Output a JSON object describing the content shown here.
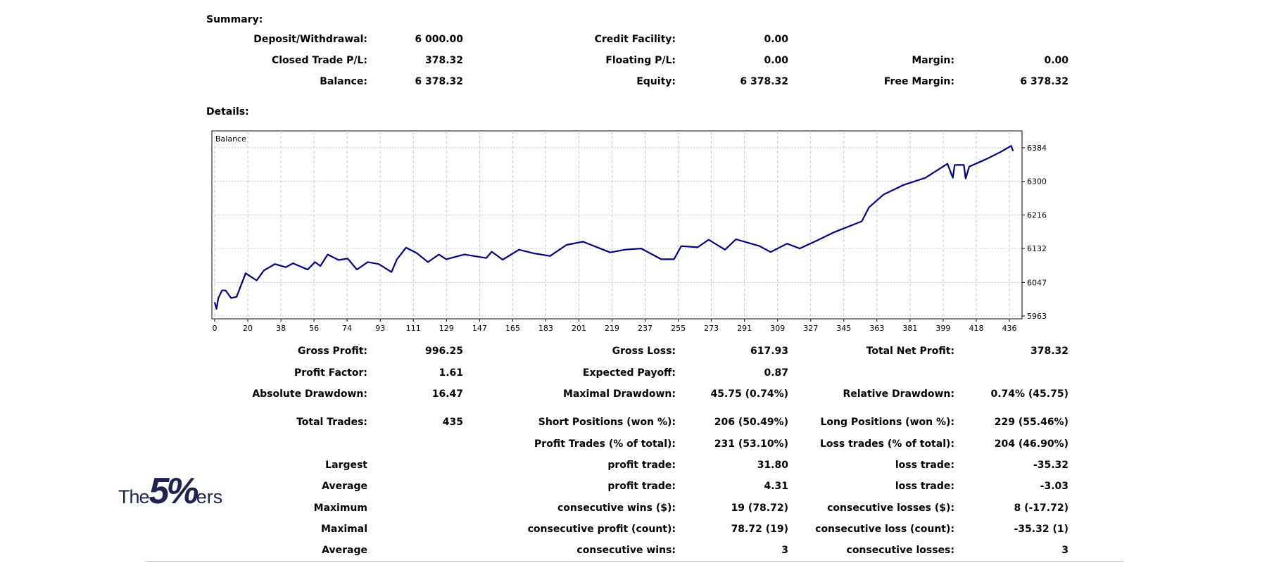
{
  "summary": {
    "title": "Summary:",
    "rows": [
      [
        {
          "label": "Deposit/Withdrawal:",
          "value": "6 000.00"
        },
        {
          "label": "Credit Facility:",
          "value": "0.00"
        },
        {
          "label": "",
          "value": ""
        }
      ],
      [
        {
          "label": "Closed Trade P/L:",
          "value": "378.32"
        },
        {
          "label": "Floating P/L:",
          "value": "0.00"
        },
        {
          "label": "Margin:",
          "value": "0.00"
        }
      ],
      [
        {
          "label": "Balance:",
          "value": "6 378.32"
        },
        {
          "label": "Equity:",
          "value": "6 378.32"
        },
        {
          "label": "Free Margin:",
          "value": "6 378.32"
        }
      ]
    ]
  },
  "details": {
    "title": "Details:",
    "rows": [
      [
        {
          "label": "Gross Profit:",
          "value": "996.25"
        },
        {
          "label": "Gross Loss:",
          "value": "617.93"
        },
        {
          "label": "Total Net Profit:",
          "value": "378.32"
        }
      ],
      [
        {
          "label": "Profit Factor:",
          "value": "1.61"
        },
        {
          "label": "Expected Payoff:",
          "value": "0.87"
        },
        {
          "label": "",
          "value": ""
        }
      ],
      [
        {
          "label": "Absolute Drawdown:",
          "value": "16.47"
        },
        {
          "label": "Maximal Drawdown:",
          "value": "45.75 (0.74%)"
        },
        {
          "label": "Relative Drawdown:",
          "value": "0.74% (45.75)"
        }
      ],
      [
        {
          "label": "Total Trades:",
          "value": "435"
        },
        {
          "label": "Short Positions (won %):",
          "value": "206 (50.49%)"
        },
        {
          "label": "Long Positions (won %):",
          "value": "229 (55.46%)"
        }
      ],
      [
        {
          "label": "",
          "value": ""
        },
        {
          "label": "Profit Trades (% of total):",
          "value": "231 (53.10%)"
        },
        {
          "label": "Loss trades (% of total):",
          "value": "204 (46.90%)"
        }
      ],
      [
        {
          "label": "Largest",
          "value": ""
        },
        {
          "label": "profit trade:",
          "value": "31.80"
        },
        {
          "label": "loss trade:",
          "value": "-35.32"
        }
      ],
      [
        {
          "label": "Average",
          "value": ""
        },
        {
          "label": "profit trade:",
          "value": "4.31"
        },
        {
          "label": "loss trade:",
          "value": "-3.03"
        }
      ],
      [
        {
          "label": "Maximum",
          "value": ""
        },
        {
          "label": "consecutive wins ($):",
          "value": "19 (78.72)"
        },
        {
          "label": "consecutive losses ($):",
          "value": "8 (-17.72)"
        }
      ],
      [
        {
          "label": "Maximal",
          "value": ""
        },
        {
          "label": "consecutive profit (count):",
          "value": "78.72 (19)"
        },
        {
          "label": "consecutive loss (count):",
          "value": "-35.32 (1)"
        }
      ],
      [
        {
          "label": "Average",
          "value": ""
        },
        {
          "label": "consecutive wins:",
          "value": "3"
        },
        {
          "label": "consecutive losses:",
          "value": "3"
        }
      ]
    ]
  },
  "logo": {
    "text_1": "The",
    "text_2": "5%",
    "text_3": "ers",
    "color": "#1e2350"
  },
  "chart_data": {
    "type": "line",
    "title": "Balance",
    "line_color": "#000080",
    "grid": true,
    "xlim": [
      0,
      438
    ],
    "ylim": [
      5963,
      6384
    ],
    "x_ticks": [
      "0",
      "20",
      "38",
      "56",
      "74",
      "93",
      "111",
      "129",
      "147",
      "165",
      "183",
      "201",
      "219",
      "237",
      "255",
      "273",
      "291",
      "309",
      "327",
      "345",
      "363",
      "381",
      "399",
      "418",
      "436"
    ],
    "y_ticks": [
      "5963",
      "6047",
      "6132",
      "6216",
      "6300",
      "6384"
    ],
    "series": [
      {
        "x": [
          0,
          1,
          2,
          4,
          6,
          9,
          12,
          17,
          23,
          27,
          33,
          39,
          43,
          51,
          55,
          58,
          62,
          68,
          73,
          78,
          84,
          90,
          97,
          100,
          105,
          111,
          117,
          123,
          127,
          137,
          149,
          152,
          158,
          167,
          175,
          184,
          193,
          202,
          217,
          225,
          234,
          245,
          252,
          256,
          265,
          271,
          280,
          286,
          299,
          305,
          314,
          321,
          331,
          340,
          355,
          359,
          367,
          378,
          390,
          402,
          405,
          406,
          411,
          412,
          414,
          423,
          431,
          437,
          438
        ],
        "y": [
          5997,
          5981,
          6008,
          6027,
          6027,
          6008,
          6011,
          6070,
          6052,
          6077,
          6093,
          6085,
          6095,
          6079,
          6098,
          6088,
          6117,
          6103,
          6107,
          6079,
          6098,
          6093,
          6073,
          6105,
          6134,
          6120,
          6098,
          6117,
          6105,
          6117,
          6108,
          6124,
          6104,
          6129,
          6120,
          6113,
          6141,
          6149,
          6122,
          6129,
          6132,
          6105,
          6105,
          6138,
          6135,
          6154,
          6129,
          6155,
          6138,
          6123,
          6144,
          6132,
          6153,
          6173,
          6200,
          6235,
          6267,
          6291,
          6309,
          6344,
          6309,
          6341,
          6341,
          6307,
          6337,
          6355,
          6373,
          6389,
          6376
        ]
      }
    ]
  }
}
